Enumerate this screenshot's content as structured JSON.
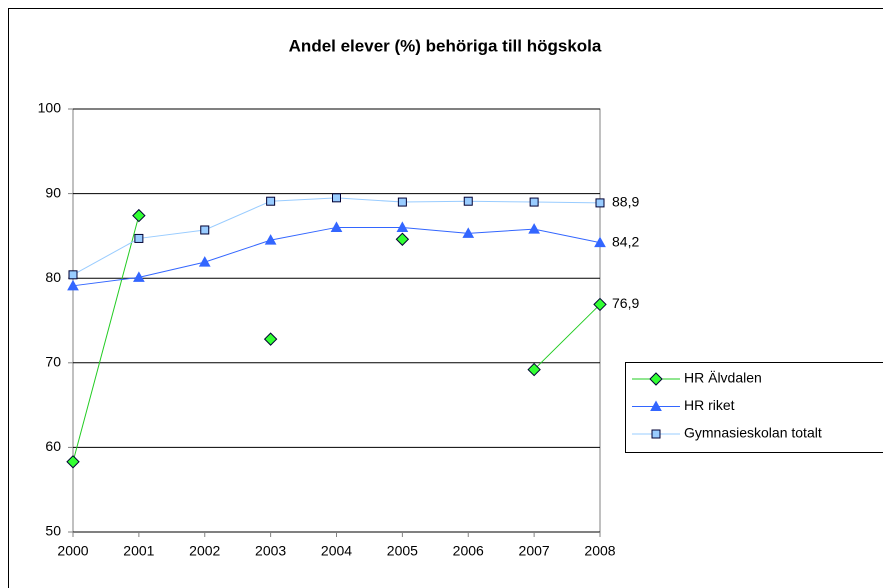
{
  "chart_data": {
    "type": "line",
    "title": "Andel elever (%) behöriga till högskola",
    "categories": [
      "2000",
      "2001",
      "2002",
      "2003",
      "2004",
      "2005",
      "2006",
      "2007",
      "2008"
    ],
    "ylim": [
      50,
      100
    ],
    "yticks": [
      50,
      60,
      70,
      80,
      90,
      100
    ],
    "grid": true,
    "legend": "right",
    "series": [
      {
        "name": "HR Älvdalen",
        "color": "#22cc22",
        "marker": "diamond",
        "marker_fill": "#33ff33",
        "values": [
          58.3,
          87.4,
          null,
          72.8,
          null,
          84.6,
          null,
          69.2,
          76.9
        ],
        "value_labels": [
          null,
          null,
          null,
          null,
          null,
          null,
          null,
          null,
          "76,9"
        ]
      },
      {
        "name": "HR riket",
        "color": "#3366ff",
        "marker": "triangle",
        "marker_fill": "#3366ff",
        "values": [
          79.1,
          80.1,
          81.9,
          84.5,
          86.0,
          86.0,
          85.3,
          85.8,
          84.2
        ],
        "value_labels": [
          null,
          null,
          null,
          null,
          null,
          null,
          null,
          null,
          "84,2"
        ]
      },
      {
        "name": "Gymnasieskolan totalt",
        "color": "#99ccff",
        "marker": "square",
        "marker_fill": "#99ccff",
        "values": [
          80.4,
          84.7,
          85.7,
          89.1,
          89.5,
          89.0,
          89.1,
          89.0,
          88.9
        ],
        "value_labels": [
          null,
          null,
          null,
          null,
          null,
          null,
          null,
          null,
          "88,9"
        ]
      }
    ]
  }
}
